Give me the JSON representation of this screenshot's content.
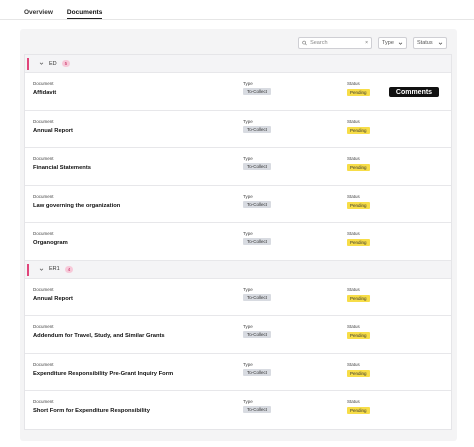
{
  "tabs": [
    {
      "label": "Overview"
    },
    {
      "label": "Documents"
    }
  ],
  "filters": {
    "search_placeholder": "Search",
    "clear_label": "×",
    "type_label": "Type",
    "status_label": "Status"
  },
  "columns": {
    "document": "Document",
    "type": "Type",
    "status": "Status"
  },
  "groups": [
    {
      "name": "ED",
      "count": "5",
      "rows": [
        {
          "document": "Affidavit",
          "type": "To-Collect",
          "status": "Pending",
          "tag": "Comments"
        },
        {
          "document": "Annual Report",
          "type": "To-Collect",
          "status": "Pending"
        },
        {
          "document": "Financial Statements",
          "type": "To-Collect",
          "status": "Pending"
        },
        {
          "document": "Law governing the organization",
          "type": "To-Collect",
          "status": "Pending"
        },
        {
          "document": "Organogram",
          "type": "To-Collect",
          "status": "Pending"
        }
      ]
    },
    {
      "name": "ER1",
      "count": "4",
      "rows": [
        {
          "document": "Annual Report",
          "type": "To-Collect",
          "status": "Pending"
        },
        {
          "document": "Addendum for Travel, Study, and Similar Grants",
          "type": "To-Collect",
          "status": "Pending"
        },
        {
          "document": "Expenditure Responsibility Pre-Grant Inquiry Form",
          "type": "To-Collect",
          "status": "Pending"
        },
        {
          "document": "Short Form for Expenditure Responsibility",
          "type": "To-Collect",
          "status": "Pending"
        }
      ]
    }
  ]
}
